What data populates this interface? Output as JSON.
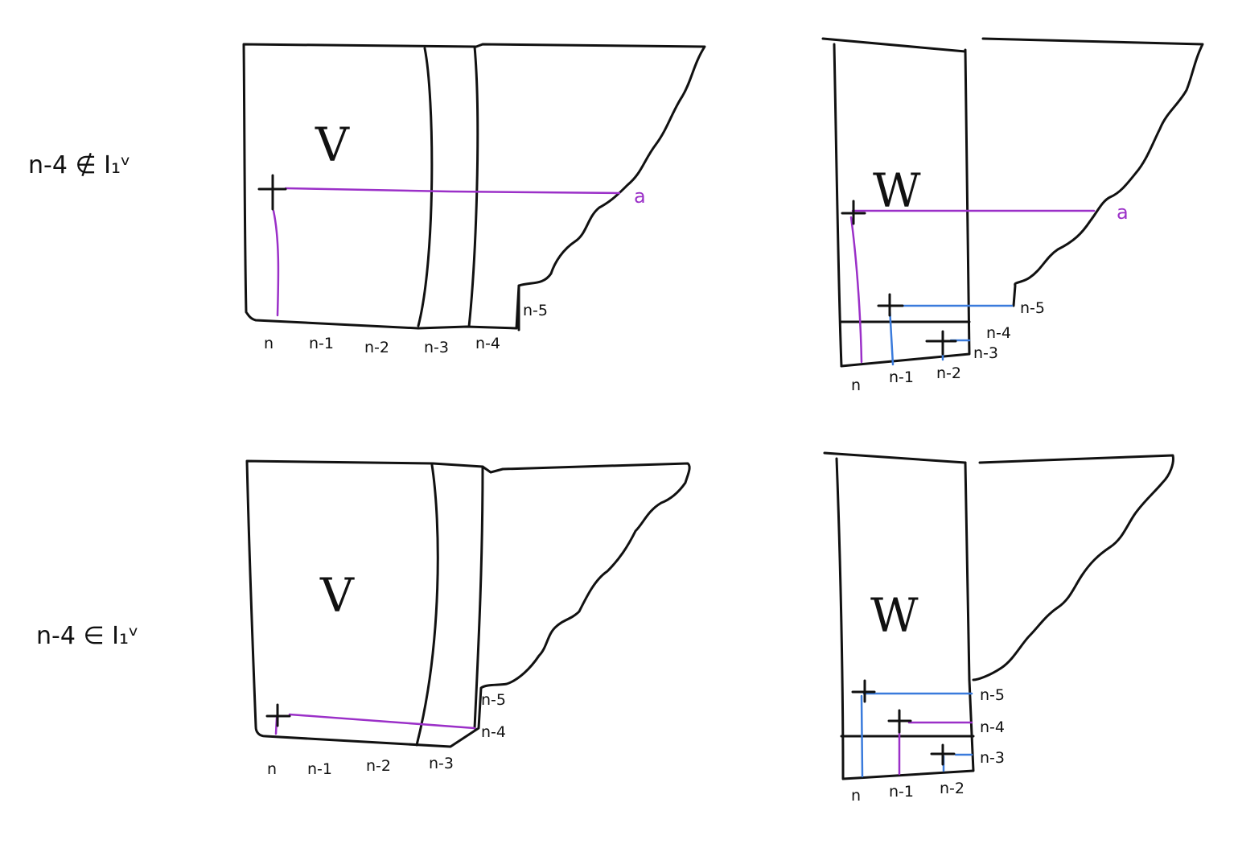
{
  "rows": [
    {
      "condition": "n-4 ∉ I₁ᵛ"
    },
    {
      "condition": "n-4 ∈ I₁ᵛ"
    }
  ],
  "panels": {
    "top_left": {
      "symbol": "V",
      "row_label": "a",
      "column_labels": [
        "n",
        "n-1",
        "n-2",
        "n-3",
        "n-4"
      ],
      "step_label": "n-5"
    },
    "top_right": {
      "symbol": "W",
      "row_label": "a",
      "column_labels": [
        "n",
        "n-1",
        "n-2"
      ],
      "step_labels": [
        "n-5",
        "n-4",
        "n-3"
      ]
    },
    "bottom_left": {
      "symbol": "V",
      "column_labels": [
        "n",
        "n-1",
        "n-2",
        "n-3"
      ],
      "step_labels": [
        "n-5",
        "n-4"
      ]
    },
    "bottom_right": {
      "symbol": "W",
      "column_labels": [
        "n",
        "n-1",
        "n-2"
      ],
      "step_labels": [
        "n-5",
        "n-4",
        "n-3"
      ]
    }
  },
  "colors": {
    "ink": "#111111",
    "purple": "#9b30c8",
    "blue": "#3a7bdc"
  }
}
